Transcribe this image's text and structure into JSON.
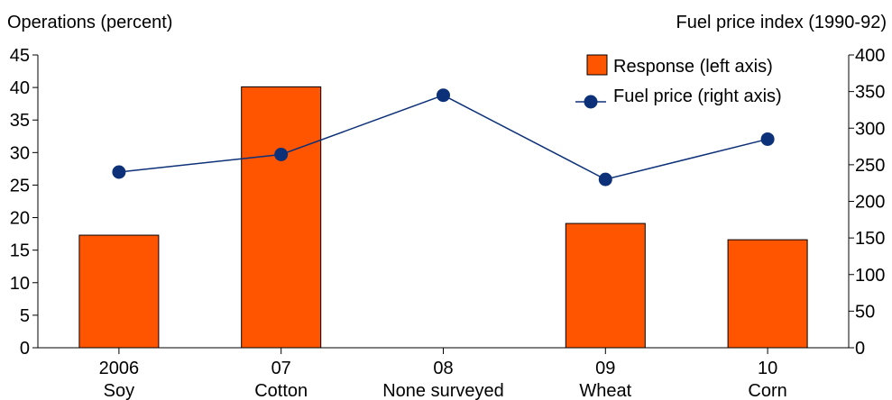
{
  "chart_data": {
    "type": "bar",
    "left_axis_title": "Operations (percent)",
    "right_axis_title": "Fuel price index (1990-92)",
    "categories": [
      {
        "year": "2006",
        "crop": "Soy"
      },
      {
        "year": "07",
        "crop": "Cotton"
      },
      {
        "year": "08",
        "crop": "None surveyed"
      },
      {
        "year": "09",
        "crop": "Wheat"
      },
      {
        "year": "10",
        "crop": "Corn"
      }
    ],
    "series": [
      {
        "name": "Response (left axis)",
        "type": "bar",
        "axis": "left",
        "color": "#ff5500",
        "values": [
          17.3,
          40.1,
          null,
          19.1,
          16.6
        ]
      },
      {
        "name": "Fuel price (right axis)",
        "type": "line",
        "axis": "right",
        "color": "#0d3178",
        "values": [
          240,
          264,
          345,
          230,
          285
        ]
      }
    ],
    "left_axis": {
      "min": 0,
      "max": 45,
      "ticks": [
        0,
        5,
        10,
        15,
        20,
        25,
        30,
        35,
        40,
        45
      ]
    },
    "right_axis": {
      "min": 0,
      "max": 400,
      "ticks": [
        0,
        50,
        100,
        150,
        200,
        250,
        300,
        350,
        400
      ]
    },
    "legend_position": "top-right",
    "grid": false
  }
}
